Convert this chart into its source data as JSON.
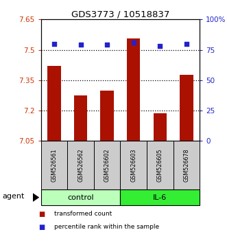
{
  "title": "GDS3773 / 10518837",
  "samples": [
    "GSM526561",
    "GSM526562",
    "GSM526602",
    "GSM526603",
    "GSM526605",
    "GSM526678"
  ],
  "bar_values": [
    7.42,
    7.275,
    7.3,
    7.555,
    7.185,
    7.375
  ],
  "percentile_values": [
    80,
    79,
    79,
    81,
    78,
    80
  ],
  "bar_color": "#aa1100",
  "percentile_color": "#2222cc",
  "ymin": 7.05,
  "ymax": 7.65,
  "yticks": [
    7.05,
    7.2,
    7.35,
    7.5,
    7.65
  ],
  "ytick_labels": [
    "7.05",
    "7.2",
    "7.35",
    "7.5",
    "7.65"
  ],
  "y2min": 0,
  "y2max": 100,
  "y2ticks": [
    0,
    25,
    50,
    75,
    100
  ],
  "y2tick_labels": [
    "0",
    "25",
    "50",
    "75",
    "100%"
  ],
  "groups": [
    {
      "label": "control",
      "indices": [
        0,
        1,
        2
      ],
      "color": "#bbffbb"
    },
    {
      "label": "IL-6",
      "indices": [
        3,
        4,
        5
      ],
      "color": "#33ee33"
    }
  ],
  "group_row_label": "agent",
  "legend_bar_label": "transformed count",
  "legend_pct_label": "percentile rank within the sample",
  "bg_color": "#ffffff",
  "plot_bg": "#ffffff",
  "tick_label_bg": "#cccccc",
  "dotted_line_color": "#000000",
  "bar_width": 0.5
}
